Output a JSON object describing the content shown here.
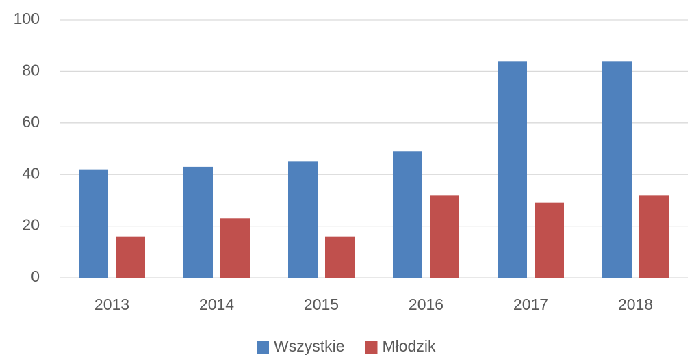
{
  "chart_data": {
    "type": "bar",
    "categories": [
      "2013",
      "2014",
      "2015",
      "2016",
      "2017",
      "2018"
    ],
    "series": [
      {
        "name": "Wszystkie",
        "color": "#4f81bd",
        "values": [
          42,
          43,
          45,
          49,
          84,
          84
        ]
      },
      {
        "name": "Młodzik",
        "color": "#c0504d",
        "values": [
          16,
          23,
          16,
          32,
          29,
          32
        ]
      }
    ],
    "ylim": [
      0,
      100
    ],
    "yticks": [
      0,
      20,
      40,
      60,
      80,
      100
    ],
    "grid": true,
    "legend": "bottom"
  }
}
